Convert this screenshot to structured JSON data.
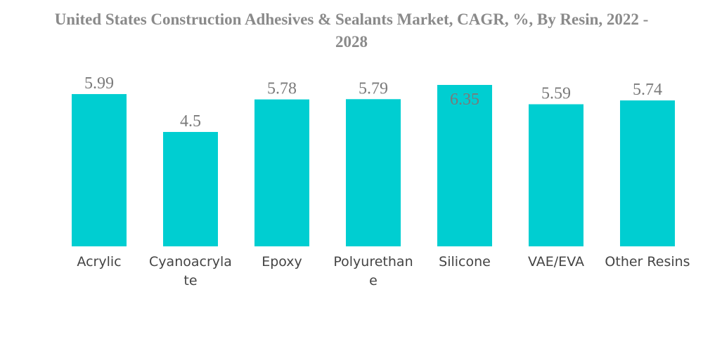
{
  "chart_data": {
    "type": "bar",
    "title": "United States Construction Adhesives & Sealants Market, CAGR, %, By Resin, 2022 - 2028",
    "categories": [
      "Acrylic",
      "Cyanoacrylate",
      "Epoxy",
      "Polyurethane",
      "Silicone",
      "VAE/EVA",
      "Other Resins"
    ],
    "category_label_lines": [
      [
        "Acrylic"
      ],
      [
        "Cyanoacryla",
        "te"
      ],
      [
        "Epoxy"
      ],
      [
        "Polyurethan",
        "e"
      ],
      [
        "Silicone"
      ],
      [
        "VAE/EVA"
      ],
      [
        "Other Resins"
      ]
    ],
    "values": [
      5.99,
      4.5,
      5.78,
      5.79,
      6.35,
      5.59,
      5.74
    ],
    "value_labels": [
      "5.99",
      "4.5",
      "5.78",
      "5.79",
      "6.35",
      "5.59",
      "5.74"
    ],
    "xlabel": "",
    "ylabel": "",
    "ylim": [
      0,
      6.35
    ],
    "grid": false,
    "legend": "none",
    "colors": {
      "bar": "#00CED1",
      "title": "#8a8a8a",
      "value_label": "#7a7a7a",
      "category_label": "#444444"
    }
  }
}
